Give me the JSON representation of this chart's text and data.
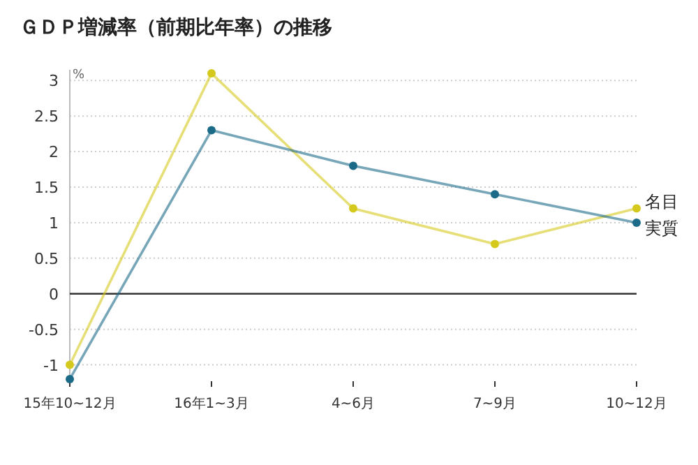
{
  "chart_data": {
    "type": "line",
    "title": "ＧＤＰ増減率（前期比年率）の推移",
    "ylabel": "%",
    "categories": [
      "15年10~12月",
      "16年1~3月",
      "4~6月",
      "7~9月",
      "10~12月"
    ],
    "series": [
      {
        "name": "名目",
        "color": "#d6c91e",
        "values": [
          -1.0,
          3.1,
          1.2,
          0.7,
          1.2
        ]
      },
      {
        "name": "実質",
        "color": "#1b6b88",
        "values": [
          -1.2,
          2.3,
          1.8,
          1.4,
          1.0
        ]
      }
    ],
    "ylim": [
      -1.25,
      3.15
    ],
    "yticks": [
      -1,
      -0.5,
      0,
      0.5,
      1,
      1.5,
      2,
      2.5,
      3
    ],
    "grid": "y",
    "legend": false,
    "marker": "circle",
    "line_style": "solid"
  }
}
